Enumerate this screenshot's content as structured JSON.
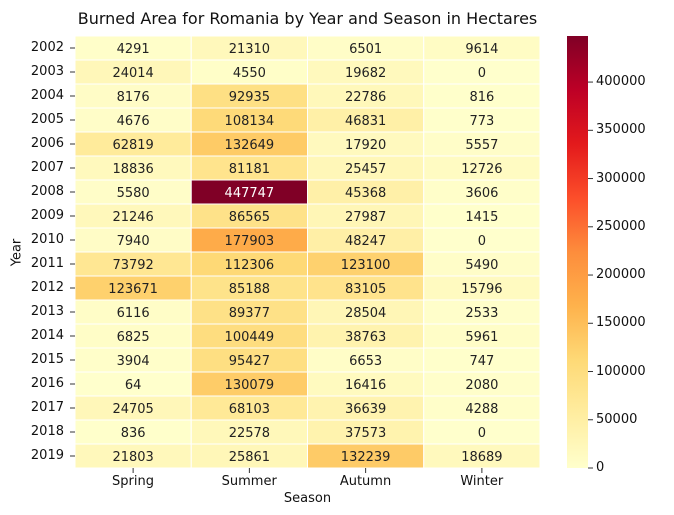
{
  "chart_data": {
    "type": "heatmap",
    "title": "Burned Area for Romania by Year and Season in Hectares",
    "xlabel": "Season",
    "ylabel": "Year",
    "columns": [
      "Spring",
      "Summer",
      "Autumn",
      "Winter"
    ],
    "rows": [
      "2002",
      "2003",
      "2004",
      "2005",
      "2006",
      "2007",
      "2008",
      "2009",
      "2010",
      "2011",
      "2012",
      "2013",
      "2014",
      "2015",
      "2016",
      "2017",
      "2018",
      "2019"
    ],
    "values": [
      [
        4291,
        21310,
        6501,
        9614
      ],
      [
        24014,
        4550,
        19682,
        0
      ],
      [
        8176,
        92935,
        22786,
        816
      ],
      [
        4676,
        108134,
        46831,
        773
      ],
      [
        62819,
        132649,
        17920,
        5557
      ],
      [
        18836,
        81181,
        25457,
        12726
      ],
      [
        5580,
        447747,
        45368,
        3606
      ],
      [
        21246,
        86565,
        27987,
        1415
      ],
      [
        7940,
        177903,
        48247,
        0
      ],
      [
        73792,
        112306,
        123100,
        5490
      ],
      [
        123671,
        85188,
        83105,
        15796
      ],
      [
        6116,
        89377,
        28504,
        2533
      ],
      [
        6825,
        100449,
        38763,
        5961
      ],
      [
        3904,
        95427,
        6653,
        747
      ],
      [
        64,
        130079,
        16416,
        2080
      ],
      [
        24705,
        68103,
        36639,
        4288
      ],
      [
        836,
        22578,
        37573,
        0
      ],
      [
        21803,
        25861,
        132239,
        18689
      ]
    ],
    "colormap": "YlOrRd",
    "vmin": 0,
    "vmax": 447747,
    "colorbar_ticks": [
      "0",
      "50000",
      "100000",
      "150000",
      "200000",
      "250000",
      "300000",
      "350000",
      "400000"
    ],
    "colors": {
      "low": "#ffffcc",
      "high": "#800026"
    }
  }
}
